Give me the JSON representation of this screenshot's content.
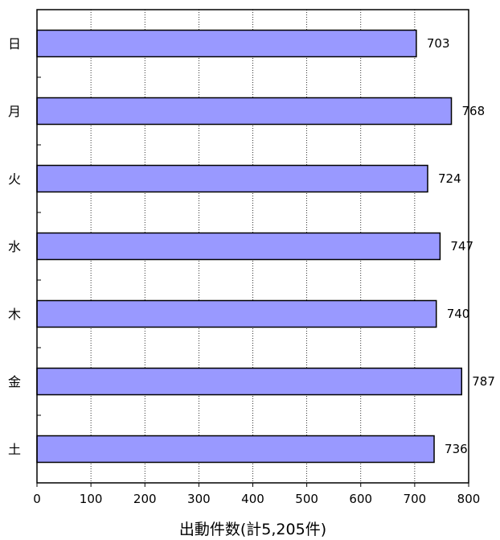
{
  "chart_data": {
    "type": "bar",
    "orientation": "horizontal",
    "categories": [
      "日",
      "月",
      "火",
      "水",
      "木",
      "金",
      "土"
    ],
    "values": [
      703,
      768,
      724,
      747,
      740,
      787,
      736
    ],
    "xlabel": "出動件数(計5,205件)",
    "xlim": [
      0,
      800
    ],
    "x_ticks": [
      0,
      100,
      200,
      300,
      400,
      500,
      600,
      700,
      800
    ],
    "grid": "vertical dotted",
    "bar_color": "#9999ff"
  }
}
